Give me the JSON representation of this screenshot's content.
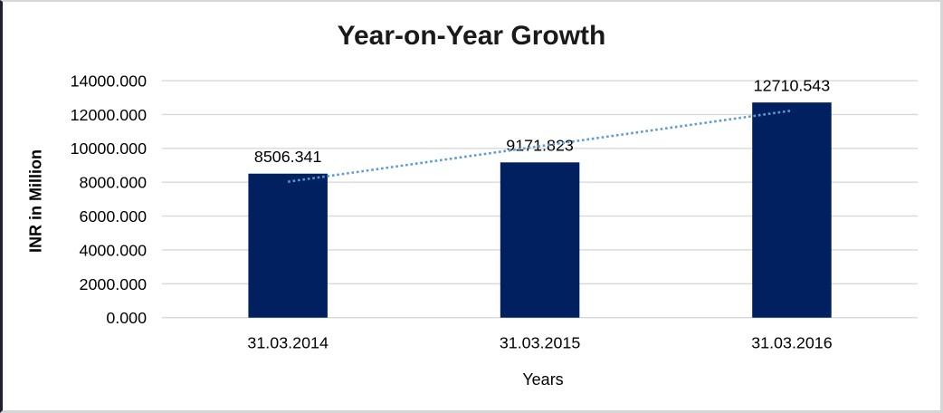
{
  "frame": {
    "background": "#FFFFFF",
    "border_color": "#D6D6D6",
    "left_edge_color": "#20202E"
  },
  "chart_data": {
    "type": "bar",
    "title": "Year-on-Year Growth",
    "xlabel": "Years",
    "ylabel": "INR in Million",
    "categories": [
      "31.03.2014",
      "31.03.2015",
      "31.03.2016"
    ],
    "values": [
      8506.341,
      9171.823,
      12710.543
    ],
    "data_labels": [
      "8506.341",
      "9171.823",
      "12710.543"
    ],
    "ylim": [
      0,
      14000
    ],
    "yticks": [
      0,
      2000,
      4000,
      6000,
      8000,
      10000,
      12000,
      14000
    ],
    "ytick_labels": [
      "0.000",
      "2000.000",
      "4000.000",
      "6000.000",
      "8000.000",
      "10000.000",
      "12000.000",
      "14000.000"
    ],
    "grid": true,
    "legend": "none",
    "trendline": {
      "type": "linear",
      "style": "dotted"
    },
    "colors": {
      "bar": "#002060",
      "trendline": "#5B9BD5",
      "gridline": "#D9D9D9",
      "tick_text": "#000000",
      "data_label_text": "#000000",
      "title_text": "#1A1A1A"
    }
  }
}
